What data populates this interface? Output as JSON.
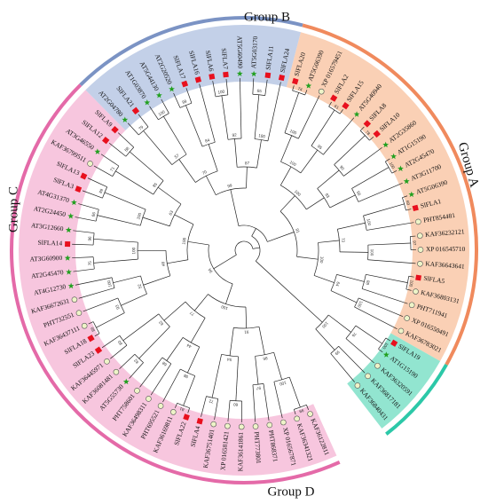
{
  "groups": [
    {
      "label": "Group A",
      "color": "#2cc8a8",
      "fill": "#7fe0c8"
    },
    {
      "label": "Group B",
      "color": "#f08a5d",
      "fill": "#f9c8a8"
    },
    {
      "label": "Group C",
      "color": "#7b93c4",
      "fill": "#b8c8e4"
    },
    {
      "label": "Group D",
      "color": "#e46aa8",
      "fill": "#f6bcd8"
    }
  ],
  "marker_colors": {
    "square": "#e8101e",
    "star": "#22a020",
    "circle_fill": "#eef4c8",
    "circle_stroke": "#555555"
  },
  "leaves": [
    {
      "label": "KAF36122811",
      "marker": "circle",
      "group": "D"
    },
    {
      "label": "KAF36341321",
      "marker": "circle",
      "group": "D"
    },
    {
      "label": "XP 016567871",
      "marker": "circle",
      "group": "D"
    },
    {
      "label": "PHT868371",
      "marker": "circle",
      "group": "D"
    },
    {
      "label": "PHT773801",
      "marker": "circle",
      "group": "D"
    },
    {
      "label": "KAF36141861",
      "marker": "circle",
      "group": "D"
    },
    {
      "label": "XP 016581421",
      "marker": "circle",
      "group": "D"
    },
    {
      "label": "KAF36751401",
      "marker": "circle",
      "group": "D"
    },
    {
      "label": "SlFLA4",
      "marker": "square",
      "group": "D"
    },
    {
      "label": "SlFLA22",
      "marker": "square",
      "group": "D"
    },
    {
      "label": "KAF36169811",
      "marker": "circle",
      "group": "D"
    },
    {
      "label": "PHT695521",
      "marker": "circle",
      "group": "D"
    },
    {
      "label": "KAF36498311",
      "marker": "circle",
      "group": "D"
    },
    {
      "label": "PHT758601",
      "marker": "circle",
      "group": "D"
    },
    {
      "label": "AT5G55730",
      "marker": "star",
      "group": "D"
    },
    {
      "label": "KAF36081481",
      "marker": "circle",
      "group": "D"
    },
    {
      "label": "KAF36445971",
      "marker": "circle",
      "group": "D"
    },
    {
      "label": "SlFLA23",
      "marker": "square",
      "group": "D"
    },
    {
      "label": "SlFLA18",
      "marker": "square",
      "group": "D"
    },
    {
      "label": "KAF36437111",
      "marker": "circle",
      "group": "D"
    },
    {
      "label": "PHT732551",
      "marker": "circle",
      "group": "D"
    },
    {
      "label": "KAF36672631",
      "marker": "circle",
      "group": "D"
    },
    {
      "label": "AT4G12730",
      "marker": "star",
      "group": "D"
    },
    {
      "label": "AT2G45470",
      "marker": "star",
      "group": "D"
    },
    {
      "label": "AT3G60900",
      "marker": "star",
      "group": "D"
    },
    {
      "label": "SlFLA14",
      "marker": "square",
      "group": "D"
    },
    {
      "label": "AT3G12660",
      "marker": "star",
      "group": "D"
    },
    {
      "label": "AT2G24450",
      "marker": "star",
      "group": "D"
    },
    {
      "label": "AT4G31370",
      "marker": "star",
      "group": "D"
    },
    {
      "label": "SlFLA3",
      "marker": "square",
      "group": "D"
    },
    {
      "label": "SlFLA13",
      "marker": "square",
      "group": "D"
    },
    {
      "label": "KAF36799511",
      "marker": "circle",
      "group": "D"
    },
    {
      "label": "AT3G46550",
      "marker": "star",
      "group": "D"
    },
    {
      "label": "SlFLA12",
      "marker": "square",
      "group": "D"
    },
    {
      "label": "SlFLA9",
      "marker": "square",
      "group": "D"
    },
    {
      "label": "AT2G04780",
      "marker": "star",
      "group": "C"
    },
    {
      "label": "SlFLA21",
      "marker": "square",
      "group": "C"
    },
    {
      "label": "AT1G03870",
      "marker": "star",
      "group": "C"
    },
    {
      "label": "AT5G44130",
      "marker": "star",
      "group": "C"
    },
    {
      "label": "AT2G20520",
      "marker": "star",
      "group": "C"
    },
    {
      "label": "SlFLA17",
      "marker": "square",
      "group": "C"
    },
    {
      "label": "SlFLA16",
      "marker": "square",
      "group": "C"
    },
    {
      "label": "SlFLA6",
      "marker": "square",
      "group": "C"
    },
    {
      "label": "SlFLA7",
      "marker": "square",
      "group": "C"
    },
    {
      "label": "AT5G60490",
      "marker": "star",
      "group": "C"
    },
    {
      "label": "AT5G03170",
      "marker": "star",
      "group": "C"
    },
    {
      "label": "SlFLA11",
      "marker": "square",
      "group": "C"
    },
    {
      "label": "SlFLA24",
      "marker": "square",
      "group": "C"
    },
    {
      "label": "SlFLA20",
      "marker": "square",
      "group": "B"
    },
    {
      "label": "AT5G06390",
      "marker": "star",
      "group": "B"
    },
    {
      "label": "XP 016579451",
      "marker": "circle",
      "group": "B"
    },
    {
      "label": "SlFLA2",
      "marker": "square",
      "group": "B"
    },
    {
      "label": "SlFLA15",
      "marker": "square",
      "group": "B"
    },
    {
      "label": "AT5G40940",
      "marker": "star",
      "group": "B"
    },
    {
      "label": "SlFLA8",
      "marker": "square",
      "group": "B"
    },
    {
      "label": "SlFLA10",
      "marker": "square",
      "group": "B"
    },
    {
      "label": "AT2G35860",
      "marker": "star",
      "group": "B"
    },
    {
      "label": "AT1G15190",
      "marker": "star",
      "group": "B"
    },
    {
      "label": "AT2G45470",
      "marker": "star",
      "group": "B"
    },
    {
      "label": "AT3G11700",
      "marker": "star",
      "group": "B"
    },
    {
      "label": "AT5G06390",
      "marker": "star",
      "group": "B"
    },
    {
      "label": "SlFLA1",
      "marker": "square",
      "group": "B"
    },
    {
      "label": "PHT854481",
      "marker": "circle",
      "group": "B"
    },
    {
      "label": "KAF36232121",
      "marker": "circle",
      "group": "B"
    },
    {
      "label": "XP 016545710",
      "marker": "circle",
      "group": "B"
    },
    {
      "label": "KAF36643641",
      "marker": "circle",
      "group": "B"
    },
    {
      "label": "SlFLA5",
      "marker": "square",
      "group": "B"
    },
    {
      "label": "KAF36803131",
      "marker": "circle",
      "group": "B"
    },
    {
      "label": "PHT711941",
      "marker": "circle",
      "group": "B"
    },
    {
      "label": "XP 016550491",
      "marker": "circle",
      "group": "B"
    },
    {
      "label": "KAF36783021",
      "marker": "circle",
      "group": "B"
    },
    {
      "label": "SlFLA19",
      "marker": "square",
      "group": "A"
    },
    {
      "label": "AT1G15190",
      "marker": "star",
      "group": "A"
    },
    {
      "label": "KAF36320591",
      "marker": "circle",
      "group": "A"
    },
    {
      "label": "KAF36817181",
      "marker": "circle",
      "group": "A"
    },
    {
      "label": "KAF36840431",
      "marker": "circle",
      "group": "A"
    }
  ],
  "bootstrap_values": [
    "99",
    "100",
    "97",
    "86",
    "60",
    "72",
    "54",
    "91",
    "81",
    "98",
    "68",
    "44",
    "82",
    "80",
    "62",
    "77",
    "100",
    "88",
    "93",
    "100",
    "52",
    "75",
    "96",
    "100",
    "48",
    "66",
    "89",
    "100",
    "71",
    "58",
    "85",
    "63",
    "100",
    "94",
    "79",
    "100",
    "57",
    "99",
    "84",
    "70",
    "100",
    "92",
    "65",
    "100",
    "87",
    "99",
    "74",
    "100",
    "61",
    "95",
    "100",
    "78",
    "90",
    "100",
    "56",
    "83",
    "100",
    "69",
    "100",
    "97",
    "100",
    "73",
    "100",
    "88",
    "100",
    "64",
    "100",
    "91",
    "100",
    "76",
    "99",
    "100",
    "67",
    "100",
    "86"
  ]
}
